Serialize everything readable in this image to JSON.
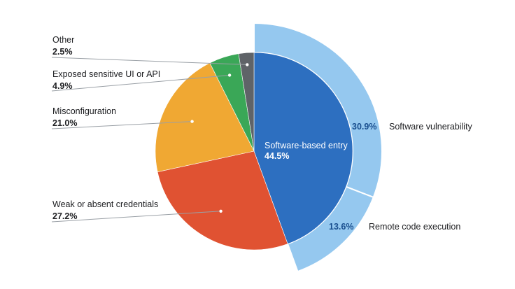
{
  "chart_data": {
    "type": "pie",
    "title": "",
    "legend": "none",
    "series": [
      {
        "ring": "inner",
        "slices": [
          {
            "label": "Software-based entry",
            "value": 44.5,
            "value_label": "44.5%",
            "color": "#2d6fc0"
          },
          {
            "label": "Weak or absent credentials",
            "value": 27.2,
            "value_label": "27.2%",
            "color": "#e05232"
          },
          {
            "label": "Misconfiguration",
            "value": 21.0,
            "value_label": "21.0%",
            "color": "#f0a833"
          },
          {
            "label": "Exposed sensitive UI or API",
            "value": 4.9,
            "value_label": "4.9%",
            "color": "#3aa757"
          },
          {
            "label": "Other",
            "value": 2.5,
            "value_label": "2.5%",
            "color": "#5f6368"
          }
        ]
      },
      {
        "ring": "outer",
        "parent": "Software-based entry",
        "slices": [
          {
            "label": "Software vulnerability",
            "value": 30.9,
            "value_label": "30.9%",
            "color": "#95c8ef"
          },
          {
            "label": "Remote code execution",
            "value": 13.6,
            "value_label": "13.6%",
            "color": "#95c8ef"
          }
        ]
      }
    ]
  }
}
